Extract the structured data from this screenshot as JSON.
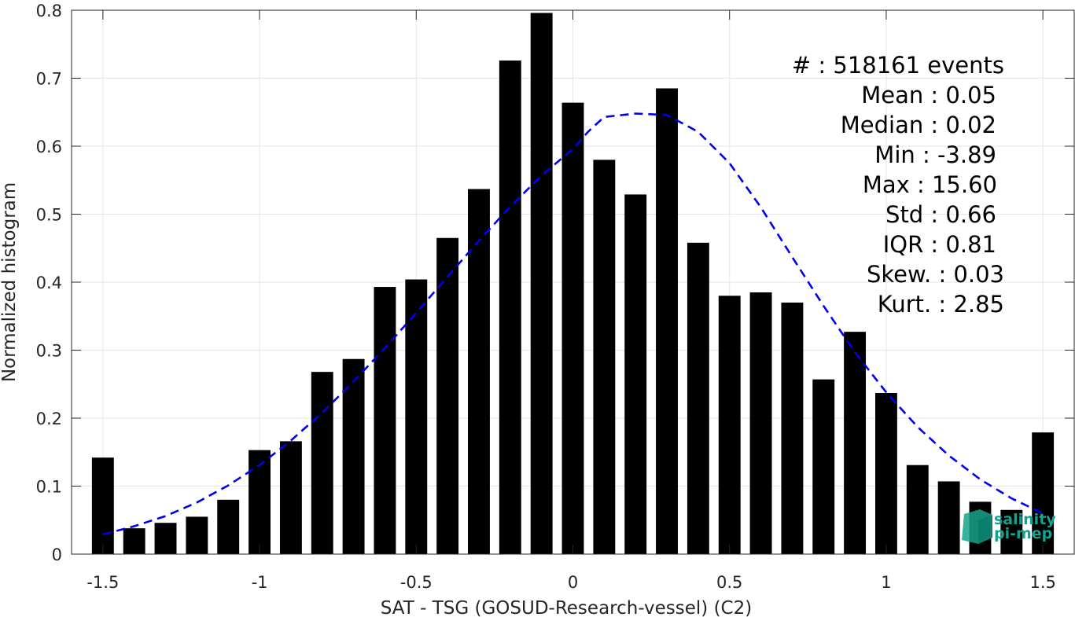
{
  "chart_data": {
    "type": "bar",
    "xlabel": "SAT - TSG (GOSUD-Research-vessel) (C2)",
    "ylabel": "Normalized histogram",
    "xlim": [
      -1.6,
      1.6
    ],
    "ylim": [
      0,
      0.8
    ],
    "xticks": [
      -1.5,
      -1,
      -0.5,
      0,
      0.5,
      1,
      1.5
    ],
    "xtick_labels": [
      "-1.5",
      "-1",
      "-0.5",
      "0",
      "0.5",
      "1",
      "1.5"
    ],
    "yticks": [
      0,
      0.1,
      0.2,
      0.3,
      0.4,
      0.5,
      0.6,
      0.7,
      0.8
    ],
    "ytick_labels": [
      "0",
      "0.1",
      "0.2",
      "0.3",
      "0.4",
      "0.5",
      "0.6",
      "0.7",
      "0.8"
    ],
    "grid": true,
    "bin_width": 0.1,
    "bars": {
      "x": [
        -1.5,
        -1.4,
        -1.3,
        -1.2,
        -1.1,
        -1.0,
        -0.9,
        -0.8,
        -0.7,
        -0.6,
        -0.5,
        -0.4,
        -0.3,
        -0.2,
        -0.1,
        0.0,
        0.1,
        0.2,
        0.3,
        0.4,
        0.5,
        0.6,
        0.7,
        0.8,
        0.9,
        1.0,
        1.1,
        1.2,
        1.3,
        1.4,
        1.5
      ],
      "values": [
        0.142,
        0.038,
        0.046,
        0.055,
        0.08,
        0.153,
        0.166,
        0.268,
        0.287,
        0.393,
        0.404,
        0.465,
        0.537,
        0.726,
        0.796,
        0.664,
        0.58,
        0.529,
        0.685,
        0.458,
        0.38,
        0.385,
        0.37,
        0.257,
        0.327,
        0.237,
        0.131,
        0.107,
        0.077,
        0.065,
        0.179
      ],
      "color": "#000000"
    },
    "fit_curve": {
      "style": "dashed",
      "color": "#0000ee",
      "x": [
        -1.5,
        -1.4,
        -1.3,
        -1.2,
        -1.1,
        -1.0,
        -0.9,
        -0.8,
        -0.7,
        -0.6,
        -0.5,
        -0.4,
        -0.3,
        -0.2,
        -0.1,
        0.0,
        0.05,
        0.1,
        0.2,
        0.3,
        0.4,
        0.5,
        0.6,
        0.7,
        0.8,
        0.9,
        1.0,
        1.1,
        1.2,
        1.3,
        1.4,
        1.5
      ],
      "y": [
        0.029,
        0.041,
        0.056,
        0.076,
        0.101,
        0.131,
        0.167,
        0.208,
        0.254,
        0.303,
        0.355,
        0.408,
        0.461,
        0.511,
        0.557,
        0.596,
        0.622,
        0.643,
        0.648,
        0.646,
        0.621,
        0.575,
        0.51,
        0.437,
        0.365,
        0.297,
        0.238,
        0.187,
        0.145,
        0.11,
        0.082,
        0.06
      ]
    },
    "stats": [
      {
        "label": "#  :",
        "value": "518161 events"
      },
      {
        "label": "Mean :",
        "value": "0.05"
      },
      {
        "label": "Median :",
        "value": "0.02"
      },
      {
        "label": "Min :",
        "value": "-3.89"
      },
      {
        "label": "Max :",
        "value": "15.60"
      },
      {
        "label": "Std :",
        "value": "0.66"
      },
      {
        "label": "IQR :",
        "value": "0.81"
      },
      {
        "label": "Skew. :",
        "value": "0.03"
      },
      {
        "label": "Kurt. :",
        "value": "2.85"
      }
    ],
    "stat_lines": [
      "#  : 518161 events",
      "Mean : 0.05",
      "Median : 0.02",
      "Min : -3.89",
      "Max : 15.60",
      "Std : 0.66",
      "IQR : 0.81",
      "Skew. : 0.03",
      "Kurt. : 2.85"
    ],
    "logo": {
      "line1": "salinity",
      "line2": "pi-mep",
      "color": "#12a38e"
    }
  }
}
